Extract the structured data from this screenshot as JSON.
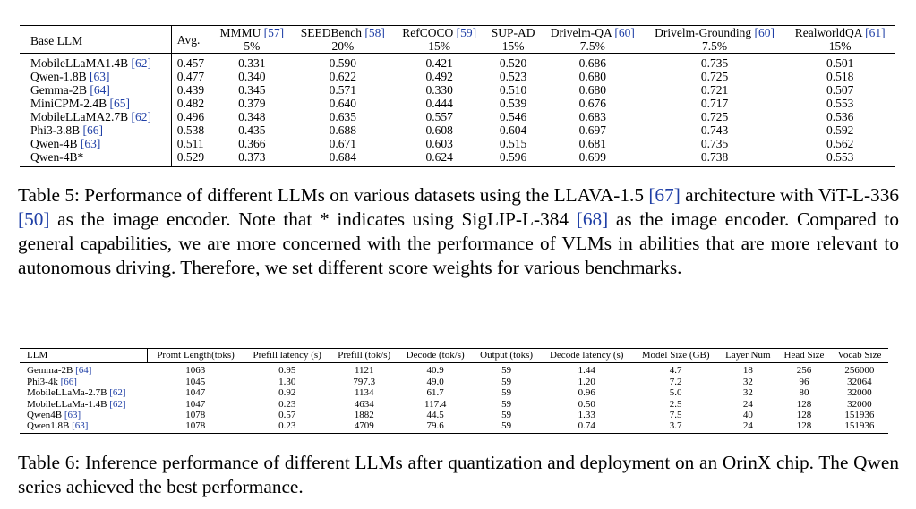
{
  "table5": {
    "headers": [
      {
        "name": "Base LLM",
        "cite": "",
        "weight": ""
      },
      {
        "name": "Avg.",
        "cite": "",
        "weight": ""
      },
      {
        "name": "MMMU ",
        "cite": "[57]",
        "weight": "5%"
      },
      {
        "name": "SEEDBench ",
        "cite": "[58]",
        "weight": "20%"
      },
      {
        "name": "RefCOCO ",
        "cite": "[59]",
        "weight": "15%"
      },
      {
        "name": "SUP-AD",
        "cite": "",
        "weight": "15%"
      },
      {
        "name": "Drivelm-QA ",
        "cite": "[60]",
        "weight": "7.5%"
      },
      {
        "name": "Drivelm-Grounding ",
        "cite": "[60]",
        "weight": "7.5%"
      },
      {
        "name": "RealworldQA ",
        "cite": "[61]",
        "weight": "15%"
      }
    ],
    "rows": [
      {
        "model": "MobileLLaMA1.4B ",
        "cite": "[62]",
        "values": [
          "0.457",
          "0.331",
          "0.590",
          "0.421",
          "0.520",
          "0.686",
          "0.735",
          "0.501"
        ]
      },
      {
        "model": "Qwen-1.8B ",
        "cite": "[63]",
        "values": [
          "0.477",
          "0.340",
          "0.622",
          "0.492",
          "0.523",
          "0.680",
          "0.725",
          "0.518"
        ]
      },
      {
        "model": "Gemma-2B ",
        "cite": "[64]",
        "values": [
          "0.439",
          "0.345",
          "0.571",
          "0.330",
          "0.510",
          "0.680",
          "0.721",
          "0.507"
        ]
      },
      {
        "model": "MiniCPM-2.4B ",
        "cite": "[65]",
        "values": [
          "0.482",
          "0.379",
          "0.640",
          "0.444",
          "0.539",
          "0.676",
          "0.717",
          "0.553"
        ]
      },
      {
        "model": "MobileLLaMA2.7B ",
        "cite": "[62]",
        "values": [
          "0.496",
          "0.348",
          "0.635",
          "0.557",
          "0.546",
          "0.683",
          "0.725",
          "0.536"
        ]
      },
      {
        "model": "Phi3-3.8B ",
        "cite": "[66]",
        "values": [
          "0.538",
          "0.435",
          "0.688",
          "0.608",
          "0.604",
          "0.697",
          "0.743",
          "0.592"
        ]
      },
      {
        "model": "Qwen-4B ",
        "cite": "[63]",
        "values": [
          "0.511",
          "0.366",
          "0.671",
          "0.603",
          "0.515",
          "0.681",
          "0.735",
          "0.562"
        ]
      },
      {
        "model": "Qwen-4B*",
        "cite": "",
        "values": [
          "0.529",
          "0.373",
          "0.684",
          "0.624",
          "0.596",
          "0.699",
          "0.738",
          "0.553"
        ]
      }
    ],
    "caption": [
      {
        "t": "Table 5: Performance of different LLMs on various datasets using the LLAVA-1.5 ",
        "cite": false
      },
      {
        "t": "[67]",
        "cite": true
      },
      {
        "t": " architecture with ViT-L-336 ",
        "cite": false
      },
      {
        "t": "[50]",
        "cite": true
      },
      {
        "t": " as the image encoder.  Note that * indicates using SigLIP-L-384 ",
        "cite": false
      },
      {
        "t": "[68]",
        "cite": true
      },
      {
        "t": " as the image encoder. Compared to general capabilities, we are more concerned with the performance of VLMs in abilities that are more relevant to autonomous driving.  Therefore, we set different score weights for various benchmarks.",
        "cite": false
      }
    ]
  },
  "table6": {
    "headers": [
      "LLM",
      "Promt Length(toks)",
      "Prefill latency (s)",
      "Prefill (tok/s)",
      "Decode (tok/s)",
      "Output (toks)",
      "Decode latency (s)",
      "Model Size (GB)",
      "Layer Num",
      "Head Size",
      "Vocab Size"
    ],
    "rows": [
      {
        "model": "Gemma-2B ",
        "cite": "[64]",
        "values": [
          "1063",
          "0.95",
          "1121",
          "40.9",
          "59",
          "1.44",
          "4.7",
          "18",
          "256",
          "256000"
        ]
      },
      {
        "model": "Phi3-4k ",
        "cite": "[66]",
        "values": [
          "1045",
          "1.30",
          "797.3",
          "49.0",
          "59",
          "1.20",
          "7.2",
          "32",
          "96",
          "32064"
        ]
      },
      {
        "model": "MobileLLaMa-2.7B ",
        "cite": "[62]",
        "values": [
          "1047",
          "0.92",
          "1134",
          "61.7",
          "59",
          "0.96",
          "5.0",
          "32",
          "80",
          "32000"
        ]
      },
      {
        "model": "MobileLLaMa-1.4B ",
        "cite": "[62]",
        "values": [
          "1047",
          "0.23",
          "4634",
          "117.4",
          "59",
          "0.50",
          "2.5",
          "24",
          "128",
          "32000"
        ]
      },
      {
        "model": "Qwen4B ",
        "cite": "[63]",
        "values": [
          "1078",
          "0.57",
          "1882",
          "44.5",
          "59",
          "1.33",
          "7.5",
          "40",
          "128",
          "151936"
        ]
      },
      {
        "model": "Qwen1.8B ",
        "cite": "[63]",
        "values": [
          "1078",
          "0.23",
          "4709",
          "79.6",
          "59",
          "0.74",
          "3.7",
          "24",
          "128",
          "151936"
        ]
      }
    ],
    "caption": [
      {
        "t": "Table 6: Inference performance of different LLMs after quantization and deployment on an OrinX chip. The Qwen series achieved the best performance.",
        "cite": false
      }
    ]
  }
}
